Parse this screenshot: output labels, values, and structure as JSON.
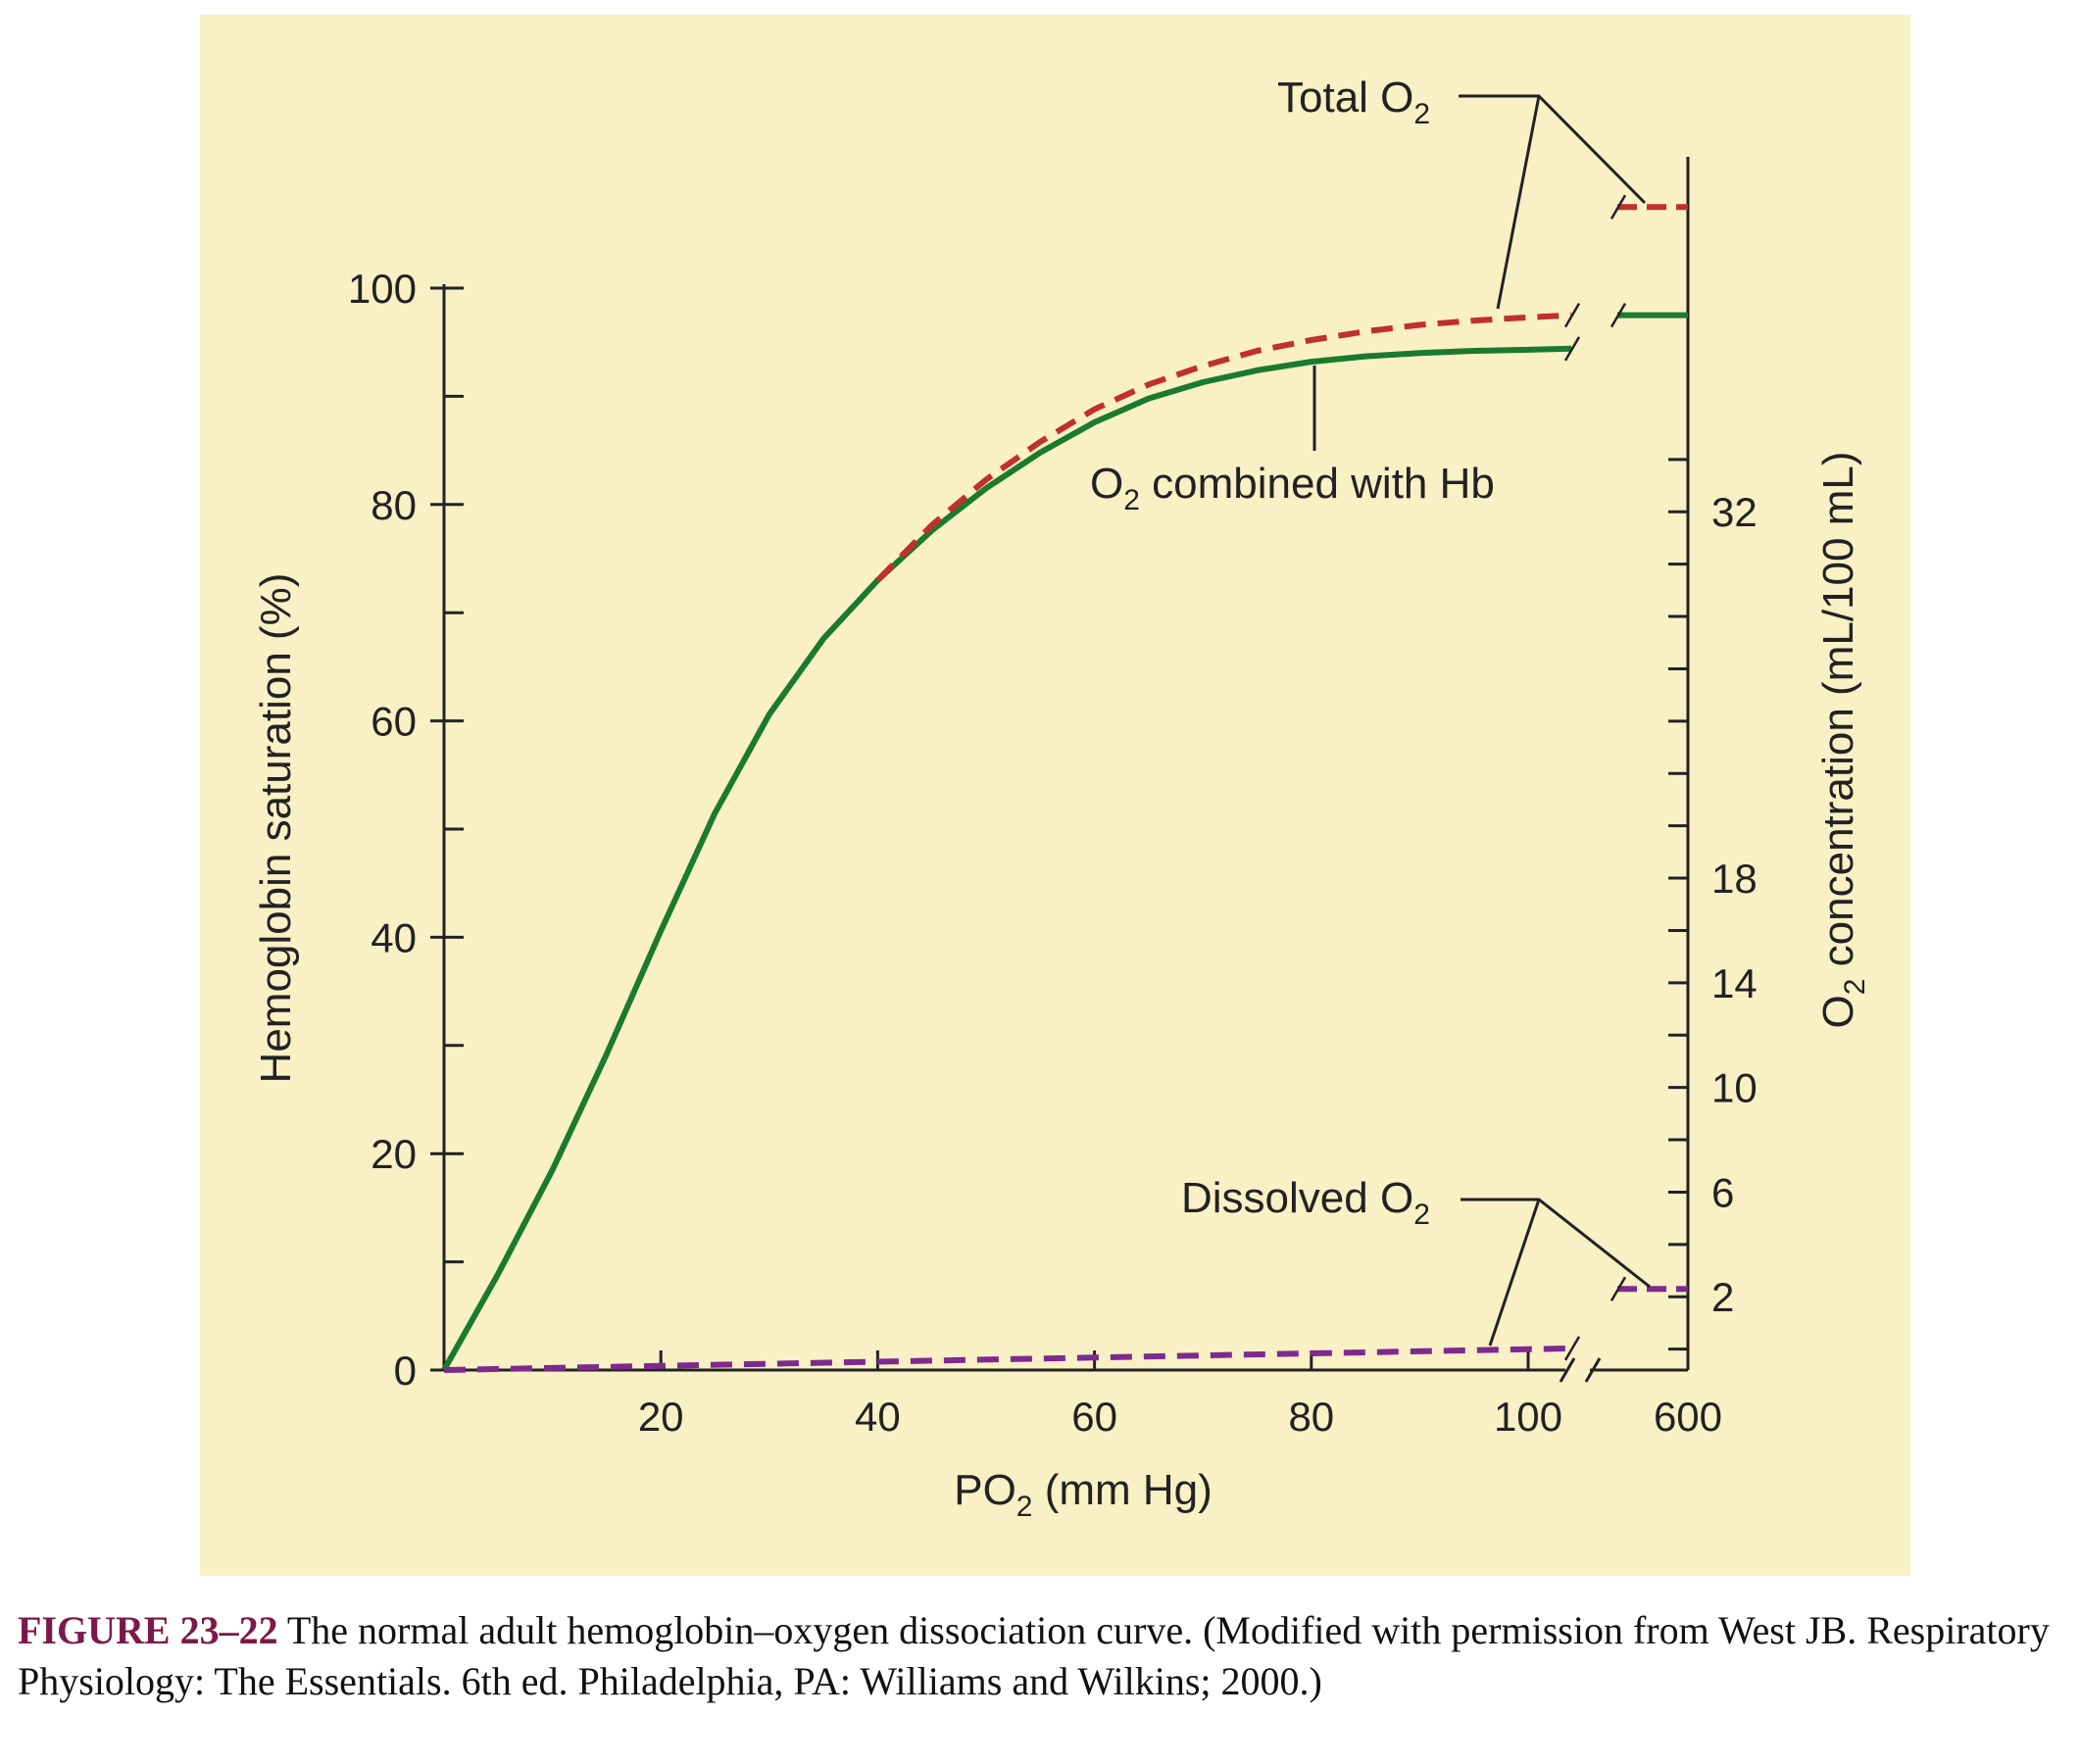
{
  "chart_data": {
    "type": "line",
    "x_axis": {
      "label_parts": [
        "P",
        "O",
        "2",
        " (mm Hg)"
      ],
      "ticks": [
        20,
        40,
        60,
        80,
        100
      ],
      "break_tick": 600,
      "range": [
        0,
        104
      ]
    },
    "y_axis_left": {
      "label": "Hemoglobin saturation (%)",
      "ticks": [
        0,
        20,
        40,
        60,
        80,
        100
      ],
      "range": [
        0,
        100
      ]
    },
    "y_axis_right": {
      "label_parts": [
        "O",
        "2",
        " concentration (mL/100 mL)"
      ],
      "ticks": [
        2,
        6,
        10,
        14,
        18,
        32
      ],
      "range": [
        -0.8,
        33.6
      ]
    },
    "series": [
      {
        "name_parts": [
          "O",
          "2",
          " combined with Hb"
        ],
        "color": "#1a7a2e",
        "style": "solid",
        "x": [
          0,
          5,
          10,
          15,
          20,
          25,
          30,
          35,
          40,
          45,
          50,
          55,
          60,
          65,
          70,
          75,
          80,
          85,
          90,
          95,
          100,
          104
        ],
        "y": [
          0,
          8.9,
          18.5,
          29.2,
          40.6,
          51.5,
          60.6,
          67.6,
          73.0,
          77.6,
          81.5,
          84.8,
          87.6,
          89.8,
          91.3,
          92.4,
          93.2,
          93.7,
          94.0,
          94.2,
          94.3,
          94.4
        ],
        "at_600": 97.5
      },
      {
        "name_parts": [
          "Total O",
          "2"
        ],
        "color": "#c0302f",
        "style": "dashed",
        "x": [
          40,
          45,
          50,
          55,
          60,
          65,
          70,
          75,
          80,
          85,
          90,
          95,
          100,
          104
        ],
        "y": [
          73.0,
          78.1,
          82.3,
          85.8,
          88.8,
          91.1,
          92.8,
          94.2,
          95.2,
          96.0,
          96.6,
          97.0,
          97.3,
          97.5
        ],
        "at_600": 107.5
      },
      {
        "name_parts": [
          "Dissolved O",
          "2"
        ],
        "color": "#7d2a8e",
        "style": "dashed",
        "x": [
          0,
          104
        ],
        "y": [
          0,
          2.0
        ],
        "at_600": 7.5
      }
    ]
  },
  "caption": {
    "label": "FIGURE 23–22",
    "text": " The normal adult hemoglobin–oxygen dissociation curve. (Modified with permission from West JB. Respiratory Physiology: The Essentials. 6th ed. Philadelphia, PA: Williams and Wilkins; 2000.)"
  }
}
